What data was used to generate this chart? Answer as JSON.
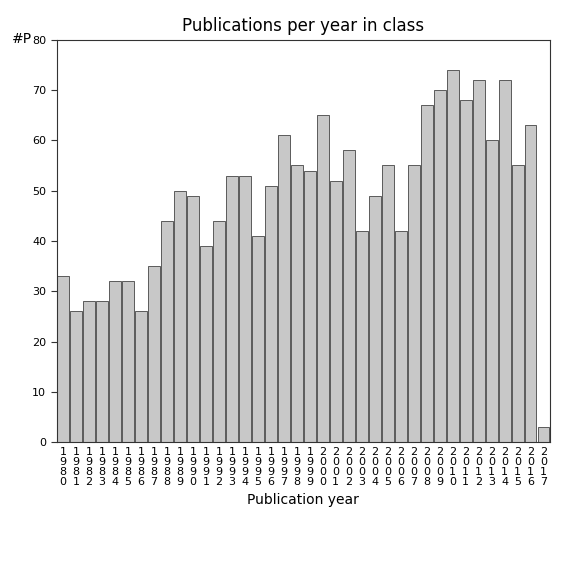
{
  "title": "Publications per year in class",
  "xlabel": "Publication year",
  "ylabel": "#P",
  "categories": [
    "1\n9\n8\n0",
    "1\n9\n8\n1",
    "1\n9\n8\n2",
    "1\n9\n8\n3",
    "1\n9\n8\n4",
    "1\n9\n8\n5",
    "1\n9\n8\n6",
    "1\n9\n8\n7",
    "1\n9\n8\n8",
    "1\n9\n8\n9",
    "1\n9\n9\n0",
    "1\n9\n9\n1",
    "1\n9\n9\n2",
    "1\n9\n9\n3",
    "1\n9\n9\n4",
    "1\n9\n9\n5",
    "1\n9\n9\n6",
    "1\n9\n9\n7",
    "1\n9\n9\n8",
    "1\n9\n9\n9",
    "2\n0\n0\n0",
    "2\n0\n0\n1",
    "2\n0\n0\n2",
    "2\n0\n0\n3",
    "2\n0\n0\n4",
    "2\n0\n0\n5",
    "2\n0\n0\n6",
    "2\n0\n0\n7",
    "2\n0\n0\n8",
    "2\n0\n0\n9",
    "2\n0\n1\n0",
    "2\n0\n1\n1",
    "2\n0\n1\n2",
    "2\n0\n1\n3",
    "2\n0\n1\n4",
    "2\n0\n1\n5",
    "2\n0\n1\n6",
    "2\n0\n1\n7"
  ],
  "values": [
    33,
    26,
    28,
    28,
    32,
    32,
    26,
    35,
    44,
    50,
    49,
    39,
    44,
    53,
    53,
    41,
    51,
    61,
    55,
    54,
    65,
    52,
    58,
    42,
    49,
    55,
    42,
    55,
    67,
    70,
    74,
    68,
    72,
    60,
    72,
    55,
    63,
    3
  ],
  "bar_color": "#c8c8c8",
  "bar_edge_color": "#444444",
  "ylim": [
    0,
    80
  ],
  "yticks": [
    0,
    10,
    20,
    30,
    40,
    50,
    60,
    70,
    80
  ],
  "background_color": "#ffffff",
  "title_fontsize": 12,
  "axis_label_fontsize": 10,
  "tick_label_fontsize": 8,
  "bar_width": 0.92
}
